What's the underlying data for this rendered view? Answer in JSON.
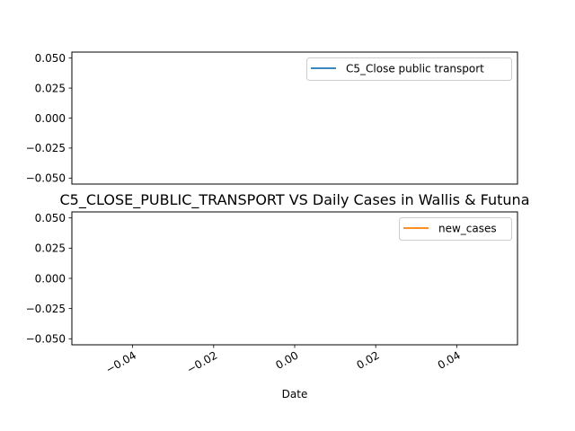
{
  "chart_data": [
    {
      "type": "line",
      "title": "",
      "xlabel": "",
      "ylabel": "",
      "ylim": [
        -0.055,
        0.055
      ],
      "yticks": [
        "0.050",
        "0.025",
        "0.000",
        "−0.025",
        "−0.050"
      ],
      "ytick_values": [
        0.05,
        0.025,
        0.0,
        -0.025,
        -0.05
      ],
      "legend_position": "top-right",
      "series": [
        {
          "name": "C5_Close public transport",
          "color": "#1f77b4",
          "x": [],
          "y": []
        }
      ]
    },
    {
      "type": "line",
      "title": "C5_CLOSE_PUBLIC_TRANSPORT VS Daily Cases in Wallis & Futuna",
      "xlabel": "Date",
      "ylabel": "",
      "xlim": [
        -0.055,
        0.055
      ],
      "ylim": [
        -0.055,
        0.055
      ],
      "xticks": [
        "−0.04",
        "−0.02",
        "0.00",
        "0.02",
        "0.04"
      ],
      "xtick_values": [
        -0.04,
        -0.02,
        0.0,
        0.02,
        0.04
      ],
      "yticks": [
        "0.050",
        "0.025",
        "0.000",
        "−0.025",
        "−0.050"
      ],
      "ytick_values": [
        0.05,
        0.025,
        0.0,
        -0.025,
        -0.05
      ],
      "legend_position": "top-right",
      "series": [
        {
          "name": "new_cases",
          "color": "#ff7f0e",
          "x": [],
          "y": []
        }
      ]
    }
  ]
}
